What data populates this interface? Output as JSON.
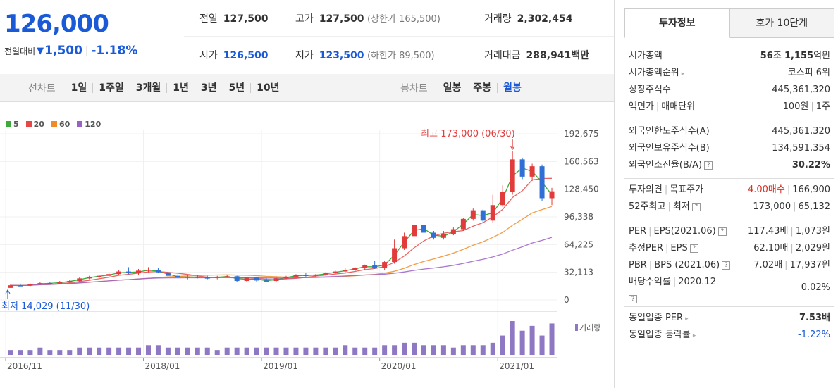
{
  "price": {
    "current": "126,000",
    "change_label": "전일대비",
    "change_arrow": "▼",
    "change": "1,500",
    "change_pct": "-1.18%"
  },
  "stats": {
    "prev_close_label": "전일",
    "prev_close": "127,500",
    "high_label": "고가",
    "high": "127,500",
    "upper_limit": "(상한가 165,500)",
    "volume_label": "거래량",
    "volume": "2,302,454",
    "open_label": "시가",
    "open": "126,500",
    "low_label": "저가",
    "low": "123,500",
    "lower_limit": "(하한가 89,500)",
    "amount_label": "거래대금",
    "amount": "288,941",
    "amount_unit": "백만"
  },
  "toolbar": {
    "line_title": "선차트",
    "line_buttons": [
      "1일",
      "1주일",
      "3개월",
      "1년",
      "3년",
      "5년",
      "10년"
    ],
    "candle_title": "봉차트",
    "candle_buttons": [
      "일봉",
      "주봉",
      "월봉"
    ],
    "active_candle": "월봉"
  },
  "chart_data": {
    "type": "candlestick",
    "legend": [
      {
        "name": "5",
        "color": "#3cab3c"
      },
      {
        "name": "20",
        "color": "#e64646"
      },
      {
        "name": "60",
        "color": "#f08c28"
      },
      {
        "name": "120",
        "color": "#9b5fc8"
      }
    ],
    "y_ticks": [
      "192,675",
      "160,563",
      "128,450",
      "96,338",
      "64,225",
      "32,113",
      "0"
    ],
    "y_tick_values": [
      192675,
      160563,
      128450,
      96338,
      64225,
      32113,
      0
    ],
    "ylim": [
      0,
      192675
    ],
    "x_ticks": [
      "2016/11",
      "2018/01",
      "2019/01",
      "2020/01",
      "2021/01"
    ],
    "x_tick_index": [
      0,
      14,
      26,
      38,
      50
    ],
    "max_label": "최고 173,000 (06/30)",
    "min_label": "최저 14,029 (11/30)",
    "volume_label": "거래량",
    "candles": [
      {
        "o": 14000,
        "h": 18000,
        "l": 14029,
        "c": 17000
      },
      {
        "o": 17000,
        "h": 19000,
        "l": 16000,
        "c": 16500
      },
      {
        "o": 16500,
        "h": 19000,
        "l": 16000,
        "c": 18000
      },
      {
        "o": 18000,
        "h": 21000,
        "l": 17500,
        "c": 19500
      },
      {
        "o": 19500,
        "h": 21000,
        "l": 18500,
        "c": 19000
      },
      {
        "o": 19000,
        "h": 22000,
        "l": 18500,
        "c": 21000
      },
      {
        "o": 21000,
        "h": 23000,
        "l": 20000,
        "c": 22000
      },
      {
        "o": 22000,
        "h": 26000,
        "l": 21000,
        "c": 25000
      },
      {
        "o": 25000,
        "h": 28000,
        "l": 24000,
        "c": 27000
      },
      {
        "o": 27000,
        "h": 29000,
        "l": 25500,
        "c": 28000
      },
      {
        "o": 28000,
        "h": 32000,
        "l": 27000,
        "c": 30000
      },
      {
        "o": 30000,
        "h": 35000,
        "l": 29000,
        "c": 33000
      },
      {
        "o": 33000,
        "h": 38000,
        "l": 30000,
        "c": 31000
      },
      {
        "o": 31000,
        "h": 36000,
        "l": 29000,
        "c": 34000
      },
      {
        "o": 34000,
        "h": 38000,
        "l": 32000,
        "c": 35000
      },
      {
        "o": 35000,
        "h": 37000,
        "l": 31000,
        "c": 32000
      },
      {
        "o": 32000,
        "h": 33000,
        "l": 27000,
        "c": 28000
      },
      {
        "o": 28000,
        "h": 30000,
        "l": 25000,
        "c": 26000
      },
      {
        "o": 26000,
        "h": 29000,
        "l": 24000,
        "c": 27000
      },
      {
        "o": 27000,
        "h": 29000,
        "l": 25000,
        "c": 26000
      },
      {
        "o": 26000,
        "h": 28000,
        "l": 24000,
        "c": 25500
      },
      {
        "o": 25500,
        "h": 28000,
        "l": 24000,
        "c": 27000
      },
      {
        "o": 27000,
        "h": 29000,
        "l": 26000,
        "c": 27500
      },
      {
        "o": 27500,
        "h": 28000,
        "l": 21000,
        "c": 22000
      },
      {
        "o": 22000,
        "h": 27000,
        "l": 21000,
        "c": 26000
      },
      {
        "o": 26000,
        "h": 27000,
        "l": 21000,
        "c": 22500
      },
      {
        "o": 22500,
        "h": 25000,
        "l": 21000,
        "c": 22000
      },
      {
        "o": 22000,
        "h": 26000,
        "l": 21500,
        "c": 25000
      },
      {
        "o": 25000,
        "h": 28000,
        "l": 24000,
        "c": 27000
      },
      {
        "o": 27000,
        "h": 30000,
        "l": 26000,
        "c": 29000
      },
      {
        "o": 29000,
        "h": 31000,
        "l": 27000,
        "c": 28000
      },
      {
        "o": 28000,
        "h": 30000,
        "l": 27000,
        "c": 29500
      },
      {
        "o": 29500,
        "h": 32000,
        "l": 28500,
        "c": 31000
      },
      {
        "o": 31000,
        "h": 34000,
        "l": 30000,
        "c": 33000
      },
      {
        "o": 33000,
        "h": 37000,
        "l": 32000,
        "c": 35000
      },
      {
        "o": 35000,
        "h": 38000,
        "l": 33000,
        "c": 37000
      },
      {
        "o": 37000,
        "h": 41000,
        "l": 35000,
        "c": 40000
      },
      {
        "o": 40000,
        "h": 45000,
        "l": 36000,
        "c": 37000
      },
      {
        "o": 37000,
        "h": 45000,
        "l": 35000,
        "c": 44000
      },
      {
        "o": 44000,
        "h": 70000,
        "l": 42000,
        "c": 60000
      },
      {
        "o": 60000,
        "h": 78000,
        "l": 58000,
        "c": 74000
      },
      {
        "o": 74000,
        "h": 88000,
        "l": 70000,
        "c": 87000
      },
      {
        "o": 87000,
        "h": 88000,
        "l": 74000,
        "c": 78000
      },
      {
        "o": 78000,
        "h": 80000,
        "l": 70000,
        "c": 72000
      },
      {
        "o": 72000,
        "h": 80000,
        "l": 70000,
        "c": 76000
      },
      {
        "o": 76000,
        "h": 84000,
        "l": 75000,
        "c": 82000
      },
      {
        "o": 82000,
        "h": 95000,
        "l": 80000,
        "c": 94000
      },
      {
        "o": 94000,
        "h": 106000,
        "l": 92000,
        "c": 104000
      },
      {
        "o": 104000,
        "h": 105000,
        "l": 90000,
        "c": 92000
      },
      {
        "o": 92000,
        "h": 122000,
        "l": 90000,
        "c": 110000
      },
      {
        "o": 110000,
        "h": 133000,
        "l": 108000,
        "c": 125000
      },
      {
        "o": 125000,
        "h": 173000,
        "l": 122000,
        "c": 163000
      },
      {
        "o": 163000,
        "h": 165000,
        "l": 140000,
        "c": 143000
      },
      {
        "o": 143000,
        "h": 158000,
        "l": 138000,
        "c": 155000
      },
      {
        "o": 155000,
        "h": 157000,
        "l": 115000,
        "c": 118000
      },
      {
        "o": 118000,
        "h": 130000,
        "l": 110000,
        "c": 126000
      }
    ],
    "volume": [
      2,
      2,
      2,
      3,
      2,
      2,
      2,
      3,
      3,
      3,
      3,
      3,
      3,
      3,
      4,
      4,
      3,
      3,
      3,
      3,
      3,
      2,
      3,
      3,
      3,
      3,
      3,
      3,
      3,
      3,
      3,
      3,
      3,
      3,
      4,
      3,
      3,
      3,
      4,
      4,
      5,
      5,
      4,
      4,
      4,
      3,
      4,
      4,
      4,
      5,
      8,
      14,
      10,
      12,
      8,
      13
    ]
  },
  "invest": {
    "tab_active": "투자정보",
    "tab_other": "호가 10단계",
    "sec1": [
      {
        "k": "시가총액",
        "v_strong1": "56",
        "v_unit1": "조 ",
        "v_strong2": "1,155",
        "v_unit2": "억원"
      },
      {
        "k": "시가총액순위",
        "v": "코스피 6위"
      },
      {
        "k": "상장주식수",
        "v": "445,361,320"
      },
      {
        "k": "액면가",
        "k2": "매매단위",
        "v": "100원",
        "v2": "1주"
      }
    ],
    "sec2": [
      {
        "k": "외국인한도주식수(A)",
        "v": "445,361,320"
      },
      {
        "k": "외국인보유주식수(B)",
        "v": "134,591,354"
      },
      {
        "k": "외국인소진율(B/A)",
        "v": "30.22%"
      }
    ],
    "sec3": [
      {
        "k": "투자의견",
        "k2": "목표주가",
        "v": "4.00매수",
        "v2": "166,900"
      },
      {
        "k": "52주최고",
        "k2": "최저",
        "v": "173,000",
        "v2": "65,132"
      }
    ],
    "sec4": [
      {
        "k": "PER",
        "k2": "EPS(2021.06)",
        "v": "117.43배",
        "v2": "1,073원"
      },
      {
        "k": "추정PER",
        "k2": "EPS",
        "v": "62.10배",
        "v2": "2,029원"
      },
      {
        "k": "PBR",
        "k2": "BPS (2021.06)",
        "v": "7.02배",
        "v2": "17,937원"
      },
      {
        "k": "배당수익률",
        "k2": "2020.12",
        "v": "0.02%"
      }
    ],
    "sec5": [
      {
        "k": "동일업종 PER",
        "v": "7.53배"
      },
      {
        "k": "동일업종 등락률",
        "v": "-1.22%"
      }
    ]
  },
  "colors": {
    "up": "#e23b3b",
    "down": "#2f6fd6",
    "accent": "#1a5ad7"
  }
}
